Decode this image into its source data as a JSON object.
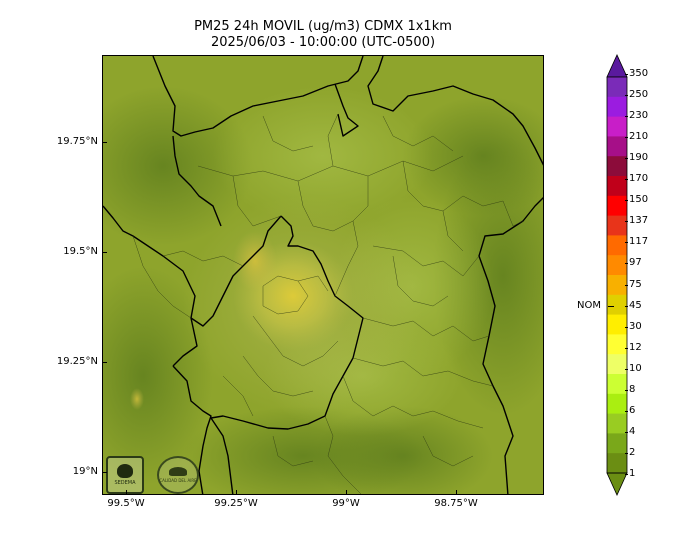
{
  "title": {
    "line1": "PM25 24h MOVIL (ug/m3) CDMX 1x1km",
    "line2": "2025/06/03 - 10:00:00 (UTC-0500)"
  },
  "map": {
    "lat_labels": [
      "19.75°N",
      "19.5°N",
      "19.25°N",
      "19°N"
    ],
    "lon_labels": [
      "99.5°W",
      "99.25°W",
      "99°W",
      "98.75°W"
    ],
    "base_color": "#8fa82a",
    "plume_color": "#d6c23a",
    "logos": {
      "sedema_text": "SEDEMA",
      "calidad_text": "CALIDAD DEL AIRE"
    }
  },
  "colorbar": {
    "labels": [
      "350",
      "250",
      "230",
      "210",
      "190",
      "170",
      "150",
      "137",
      "117",
      "97",
      "75",
      "45",
      "30",
      "12",
      "10",
      "8",
      "6",
      "4",
      "2",
      "1"
    ],
    "colors": [
      "#7a2bb8",
      "#9b1ce0",
      "#c81ec8",
      "#a60f88",
      "#8c0c3a",
      "#c0001a",
      "#ff0000",
      "#e8341a",
      "#ff6a00",
      "#ff8a00",
      "#f8b000",
      "#e0d000",
      "#ffee00",
      "#ffff33",
      "#eeff66",
      "#ccff33",
      "#aaee11",
      "#99cc22",
      "#7aa81a",
      "#6b8e13"
    ],
    "top_cap_color": "#5a1a9e",
    "bottom_cap_color": "#6b8e13",
    "nom_label": "NOM",
    "nom_value": 45
  }
}
